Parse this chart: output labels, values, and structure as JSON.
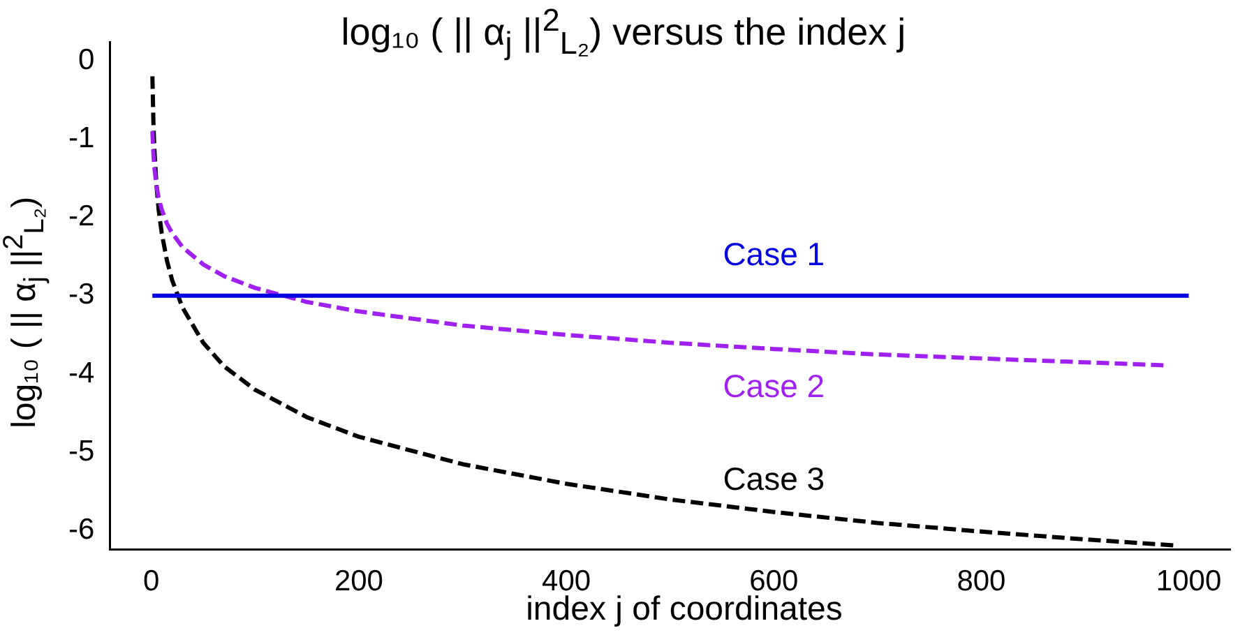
{
  "chart_data": {
    "type": "line",
    "title": "log₁₀ ( || α$_{j}$ ||$^{2}$$_{L₂}$) versus the index j",
    "xlabel": "index j of coordinates",
    "ylabel": "log₁₀ ( || α$_{j}$ ||$^{2}$$_{L₂}$)",
    "xlim": [
      -40,
      1040
    ],
    "xticks": [
      0,
      200,
      400,
      600,
      800,
      1000
    ],
    "ylim": [
      -6.24,
      0.24
    ],
    "yticks": [
      0,
      -1,
      -2,
      -3,
      -4,
      -5,
      -6
    ],
    "grid": false,
    "legend": false,
    "marker": "none",
    "series": [
      {
        "name": "Case 1",
        "color": "#0000e0",
        "line_style": "solid",
        "x": [
          1,
          1000
        ],
        "values": [
          -3,
          -3
        ]
      },
      {
        "name": "Case 2",
        "color": "#a020f0",
        "line_style": "dashed",
        "x": [
          1,
          2,
          3,
          5,
          7,
          10,
          15,
          20,
          30,
          50,
          70,
          100,
          150,
          200,
          300,
          400,
          500,
          600,
          700,
          800,
          900,
          980
        ],
        "values": [
          -0.9,
          -1.2,
          -1.38,
          -1.6,
          -1.75,
          -1.9,
          -2.08,
          -2.2,
          -2.38,
          -2.6,
          -2.75,
          -2.9,
          -3.08,
          -3.2,
          -3.38,
          -3.5,
          -3.6,
          -3.68,
          -3.75,
          -3.8,
          -3.85,
          -3.89
        ]
      },
      {
        "name": "Case 3",
        "color": "#000000",
        "line_style": "dashed",
        "x": [
          1,
          2,
          3,
          5,
          7,
          10,
          15,
          20,
          30,
          50,
          70,
          100,
          150,
          200,
          300,
          400,
          500,
          600,
          700,
          800,
          900,
          990
        ],
        "values": [
          -0.2,
          -0.8,
          -1.15,
          -1.6,
          -1.9,
          -2.2,
          -2.55,
          -2.8,
          -3.15,
          -3.6,
          -3.9,
          -4.2,
          -4.55,
          -4.8,
          -5.15,
          -5.4,
          -5.6,
          -5.76,
          -5.9,
          -6.01,
          -6.11,
          -6.19
        ]
      }
    ]
  }
}
